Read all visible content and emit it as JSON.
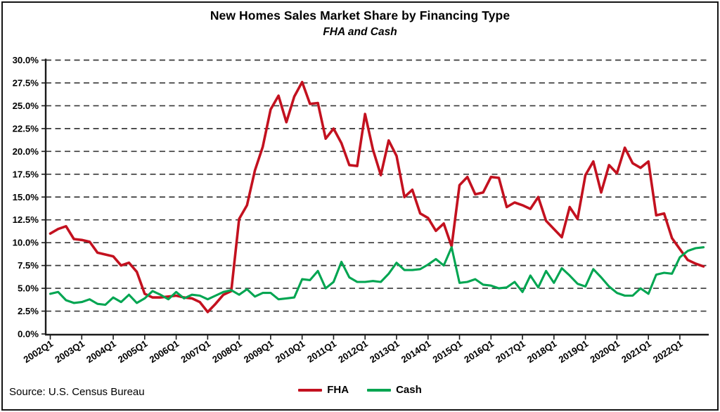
{
  "figure": {
    "title": "New Homes Sales Market Share by Financing Type",
    "subtitle": "FHA and Cash",
    "source_note": "Source: U.S. Census Bureau"
  },
  "legend": {
    "position": "bottom-center",
    "items": [
      {
        "label": "FHA",
        "color": "#c3111f"
      },
      {
        "label": "Cash",
        "color": "#00a551"
      }
    ]
  },
  "chart_data": {
    "type": "line",
    "title": "New Homes Sales Market Share by Financing Type",
    "subtitle": "FHA and Cash",
    "x_frequency": "quarterly",
    "x_range": [
      "2002Q1",
      "2022Q4"
    ],
    "x_tick_labels": [
      "2002Q1",
      "2003Q1",
      "2004Q1",
      "2005Q1",
      "2006Q1",
      "2007Q1",
      "2008Q1",
      "2009Q1",
      "2010Q1",
      "2011Q1",
      "2012Q1",
      "2013Q1",
      "2014Q1",
      "2015Q1",
      "2016Q1",
      "2017Q1",
      "2018Q1",
      "2019Q1",
      "2020Q1",
      "2021Q1",
      "2022Q1"
    ],
    "ylim": [
      0,
      30
    ],
    "ytick_step": 2.5,
    "y_tick_labels": [
      "30.0%",
      "27.5%",
      "25.0%",
      "22.5%",
      "20.0%",
      "17.5%",
      "15.0%",
      "12.5%",
      "10.0%",
      "7.5%",
      "5.0%",
      "2.5%",
      "0.0%"
    ],
    "grid": "dashed-horizontal",
    "grid_color": "#383838",
    "axis_color": "#1a1a1a",
    "legend_position": "bottom-center",
    "series": [
      {
        "name": "FHA",
        "color": "#c3111f",
        "values": [
          11.0,
          11.5,
          11.8,
          10.4,
          10.3,
          10.1,
          8.9,
          8.7,
          8.5,
          7.5,
          7.8,
          6.8,
          4.4,
          4.0,
          4.0,
          4.1,
          4.2,
          4.0,
          3.9,
          3.5,
          2.4,
          3.3,
          4.3,
          4.7,
          12.6,
          14.1,
          17.9,
          20.5,
          24.6,
          26.1,
          23.2,
          26.0,
          27.6,
          25.2,
          25.3,
          21.4,
          22.5,
          20.9,
          18.5,
          18.4,
          24.1,
          20.2,
          17.4,
          21.2,
          19.5,
          15.0,
          15.8,
          13.2,
          12.7,
          11.3,
          12.1,
          9.6,
          16.3,
          17.2,
          15.3,
          15.5,
          17.2,
          17.1,
          13.9,
          14.4,
          14.1,
          13.7,
          15.0,
          12.4,
          11.5,
          10.6,
          13.9,
          12.6,
          17.4,
          18.9,
          15.5,
          18.5,
          17.6,
          20.4,
          18.7,
          18.2,
          18.9,
          13.0,
          13.2,
          10.5,
          9.3,
          8.1,
          7.7,
          7.4
        ]
      },
      {
        "name": "Cash",
        "color": "#00a551",
        "values": [
          4.4,
          4.6,
          3.7,
          3.4,
          3.5,
          3.8,
          3.3,
          3.2,
          4.0,
          3.5,
          4.3,
          3.4,
          3.9,
          4.7,
          4.3,
          3.8,
          4.6,
          3.9,
          4.3,
          4.2,
          3.8,
          4.2,
          4.6,
          4.8,
          4.3,
          4.9,
          4.1,
          4.5,
          4.5,
          3.8,
          3.9,
          4.0,
          6.0,
          5.9,
          6.9,
          5.0,
          5.7,
          7.9,
          6.2,
          5.7,
          5.7,
          5.8,
          5.7,
          6.6,
          7.8,
          7.0,
          7.0,
          7.1,
          7.6,
          8.2,
          7.5,
          9.5,
          5.6,
          5.7,
          6.0,
          5.4,
          5.3,
          5.0,
          5.1,
          5.7,
          4.6,
          6.4,
          5.1,
          6.9,
          5.6,
          7.2,
          6.4,
          5.5,
          5.2,
          7.1,
          6.2,
          5.2,
          4.5,
          4.2,
          4.2,
          5.0,
          4.4,
          6.5,
          6.7,
          6.6,
          8.4,
          9.1,
          9.4,
          9.5
        ]
      }
    ]
  }
}
